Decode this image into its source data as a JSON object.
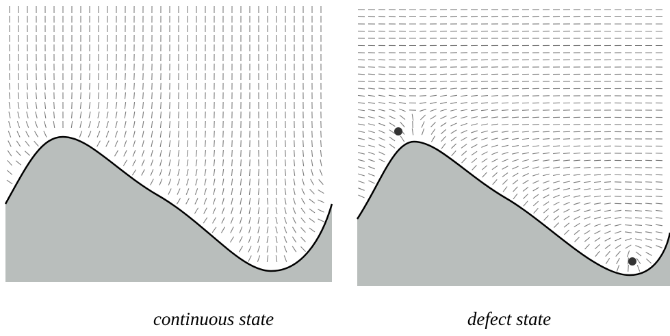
{
  "panels": [
    {
      "caption": "continuous state"
    },
    {
      "caption": "defect state"
    }
  ]
}
